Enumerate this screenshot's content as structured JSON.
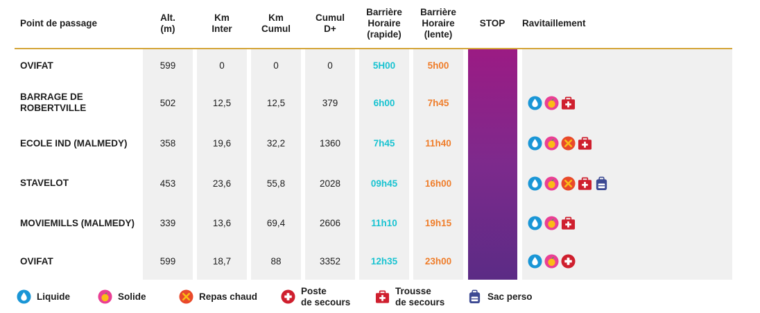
{
  "header": {
    "point": "Point de passage",
    "alt": "Alt.\n(m)",
    "km_inter": "Km\nInter",
    "km_cumul": "Km\nCumul",
    "cumul_d": "Cumul\nD+",
    "bh_rapide": "Barrière\nHoraire\n(rapide)",
    "bh_lente": "Barrière\nHoraire\n(lente)",
    "stop": "STOP",
    "ravitaillement": "Ravitaillement"
  },
  "rows": [
    {
      "name": "OVIFAT",
      "alt": "599",
      "km_inter": "0",
      "km_cumul": "0",
      "cumul_d": "0",
      "fast": "5H00",
      "slow": "5h00",
      "icons": []
    },
    {
      "name": "BARRAGE DE\nROBERTVILLE",
      "alt": "502",
      "km_inter": "12,5",
      "km_cumul": "12,5",
      "cumul_d": "379",
      "fast": "6h00",
      "slow": "7h45",
      "icons": [
        "water-drop",
        "apple",
        "first-aid-kit"
      ]
    },
    {
      "name": "ECOLE IND (MALMEDY)",
      "alt": "358",
      "km_inter": "19,6",
      "km_cumul": "32,2",
      "cumul_d": "1360",
      "fast": "7h45",
      "slow": "11h40",
      "icons": [
        "water-drop",
        "apple",
        "utensils",
        "first-aid-kit"
      ]
    },
    {
      "name": "STAVELOT",
      "alt": "453",
      "km_inter": "23,6",
      "km_cumul": "55,8",
      "cumul_d": "2028",
      "fast": "09h45",
      "slow": "16h00",
      "icons": [
        "water-drop",
        "apple",
        "utensils",
        "first-aid-kit",
        "backpack"
      ]
    },
    {
      "name": "MOVIEMILLS (MALMEDY)",
      "alt": "339",
      "km_inter": "13,6",
      "km_cumul": "69,4",
      "cumul_d": "2606",
      "fast": "11h10",
      "slow": "19h15",
      "icons": [
        "water-drop",
        "apple",
        "first-aid-kit"
      ]
    },
    {
      "name": "OVIFAT",
      "alt": "599",
      "km_inter": "18,7",
      "km_cumul": "88",
      "cumul_d": "3352",
      "fast": "12h35",
      "slow": "23h00",
      "icons": [
        "water-drop",
        "apple",
        "first-aid-post"
      ]
    }
  ],
  "legend": [
    {
      "icon": "water-drop",
      "label": "Liquide"
    },
    {
      "icon": "apple",
      "label": "Solide"
    },
    {
      "icon": "utensils",
      "label": "Repas chaud"
    },
    {
      "icon": "first-aid-post",
      "label": "Poste\nde secours"
    },
    {
      "icon": "first-aid-kit",
      "label": "Trousse\nde secours"
    },
    {
      "icon": "backpack",
      "label": "Sac perso"
    }
  ],
  "colors": {
    "fast": "#19c3d1",
    "slow": "#ef7d2a",
    "rule": "#d4a437",
    "stop_top": "#9b1b84",
    "stop_bottom": "#5b2b85",
    "column_bg": "#f0f0f0"
  }
}
